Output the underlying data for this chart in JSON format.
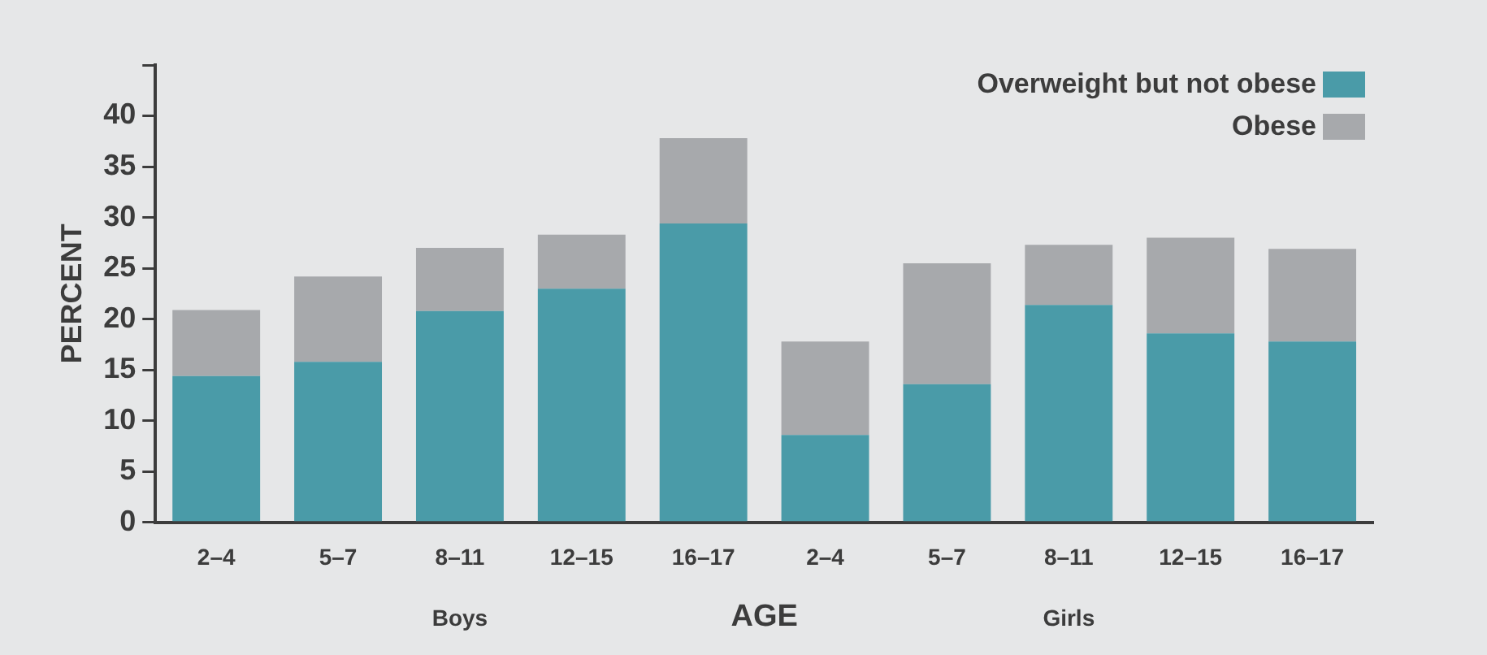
{
  "chart_data": {
    "type": "bar",
    "xlabel": "AGE",
    "ylabel": "PERCENT",
    "categories": [
      "2–4",
      "5–7",
      "8–11",
      "12–15",
      "16–17",
      "2–4",
      "5–7",
      "8–11",
      "12–15",
      "16–17"
    ],
    "series": [
      {
        "name": "Overweight but not obese",
        "color": "#4a9ba8",
        "values": [
          14.4,
          15.8,
          20.8,
          23.0,
          29.4,
          8.6,
          13.6,
          21.4,
          18.6,
          17.8
        ]
      },
      {
        "name": "Obese",
        "color": "#a7a9ac",
        "values": [
          6.5,
          8.4,
          6.2,
          5.3,
          8.4,
          9.2,
          11.9,
          5.9,
          9.4,
          9.1
        ]
      }
    ],
    "stacked": true,
    "ylim": [
      0,
      45
    ],
    "yticks": [
      0,
      5,
      10,
      15,
      20,
      25,
      30,
      35,
      40,
      {
        "value": 45,
        "label": null
      }
    ],
    "grid": false,
    "legend": "top right",
    "annotations": [
      "Boys",
      "Girls"
    ]
  }
}
